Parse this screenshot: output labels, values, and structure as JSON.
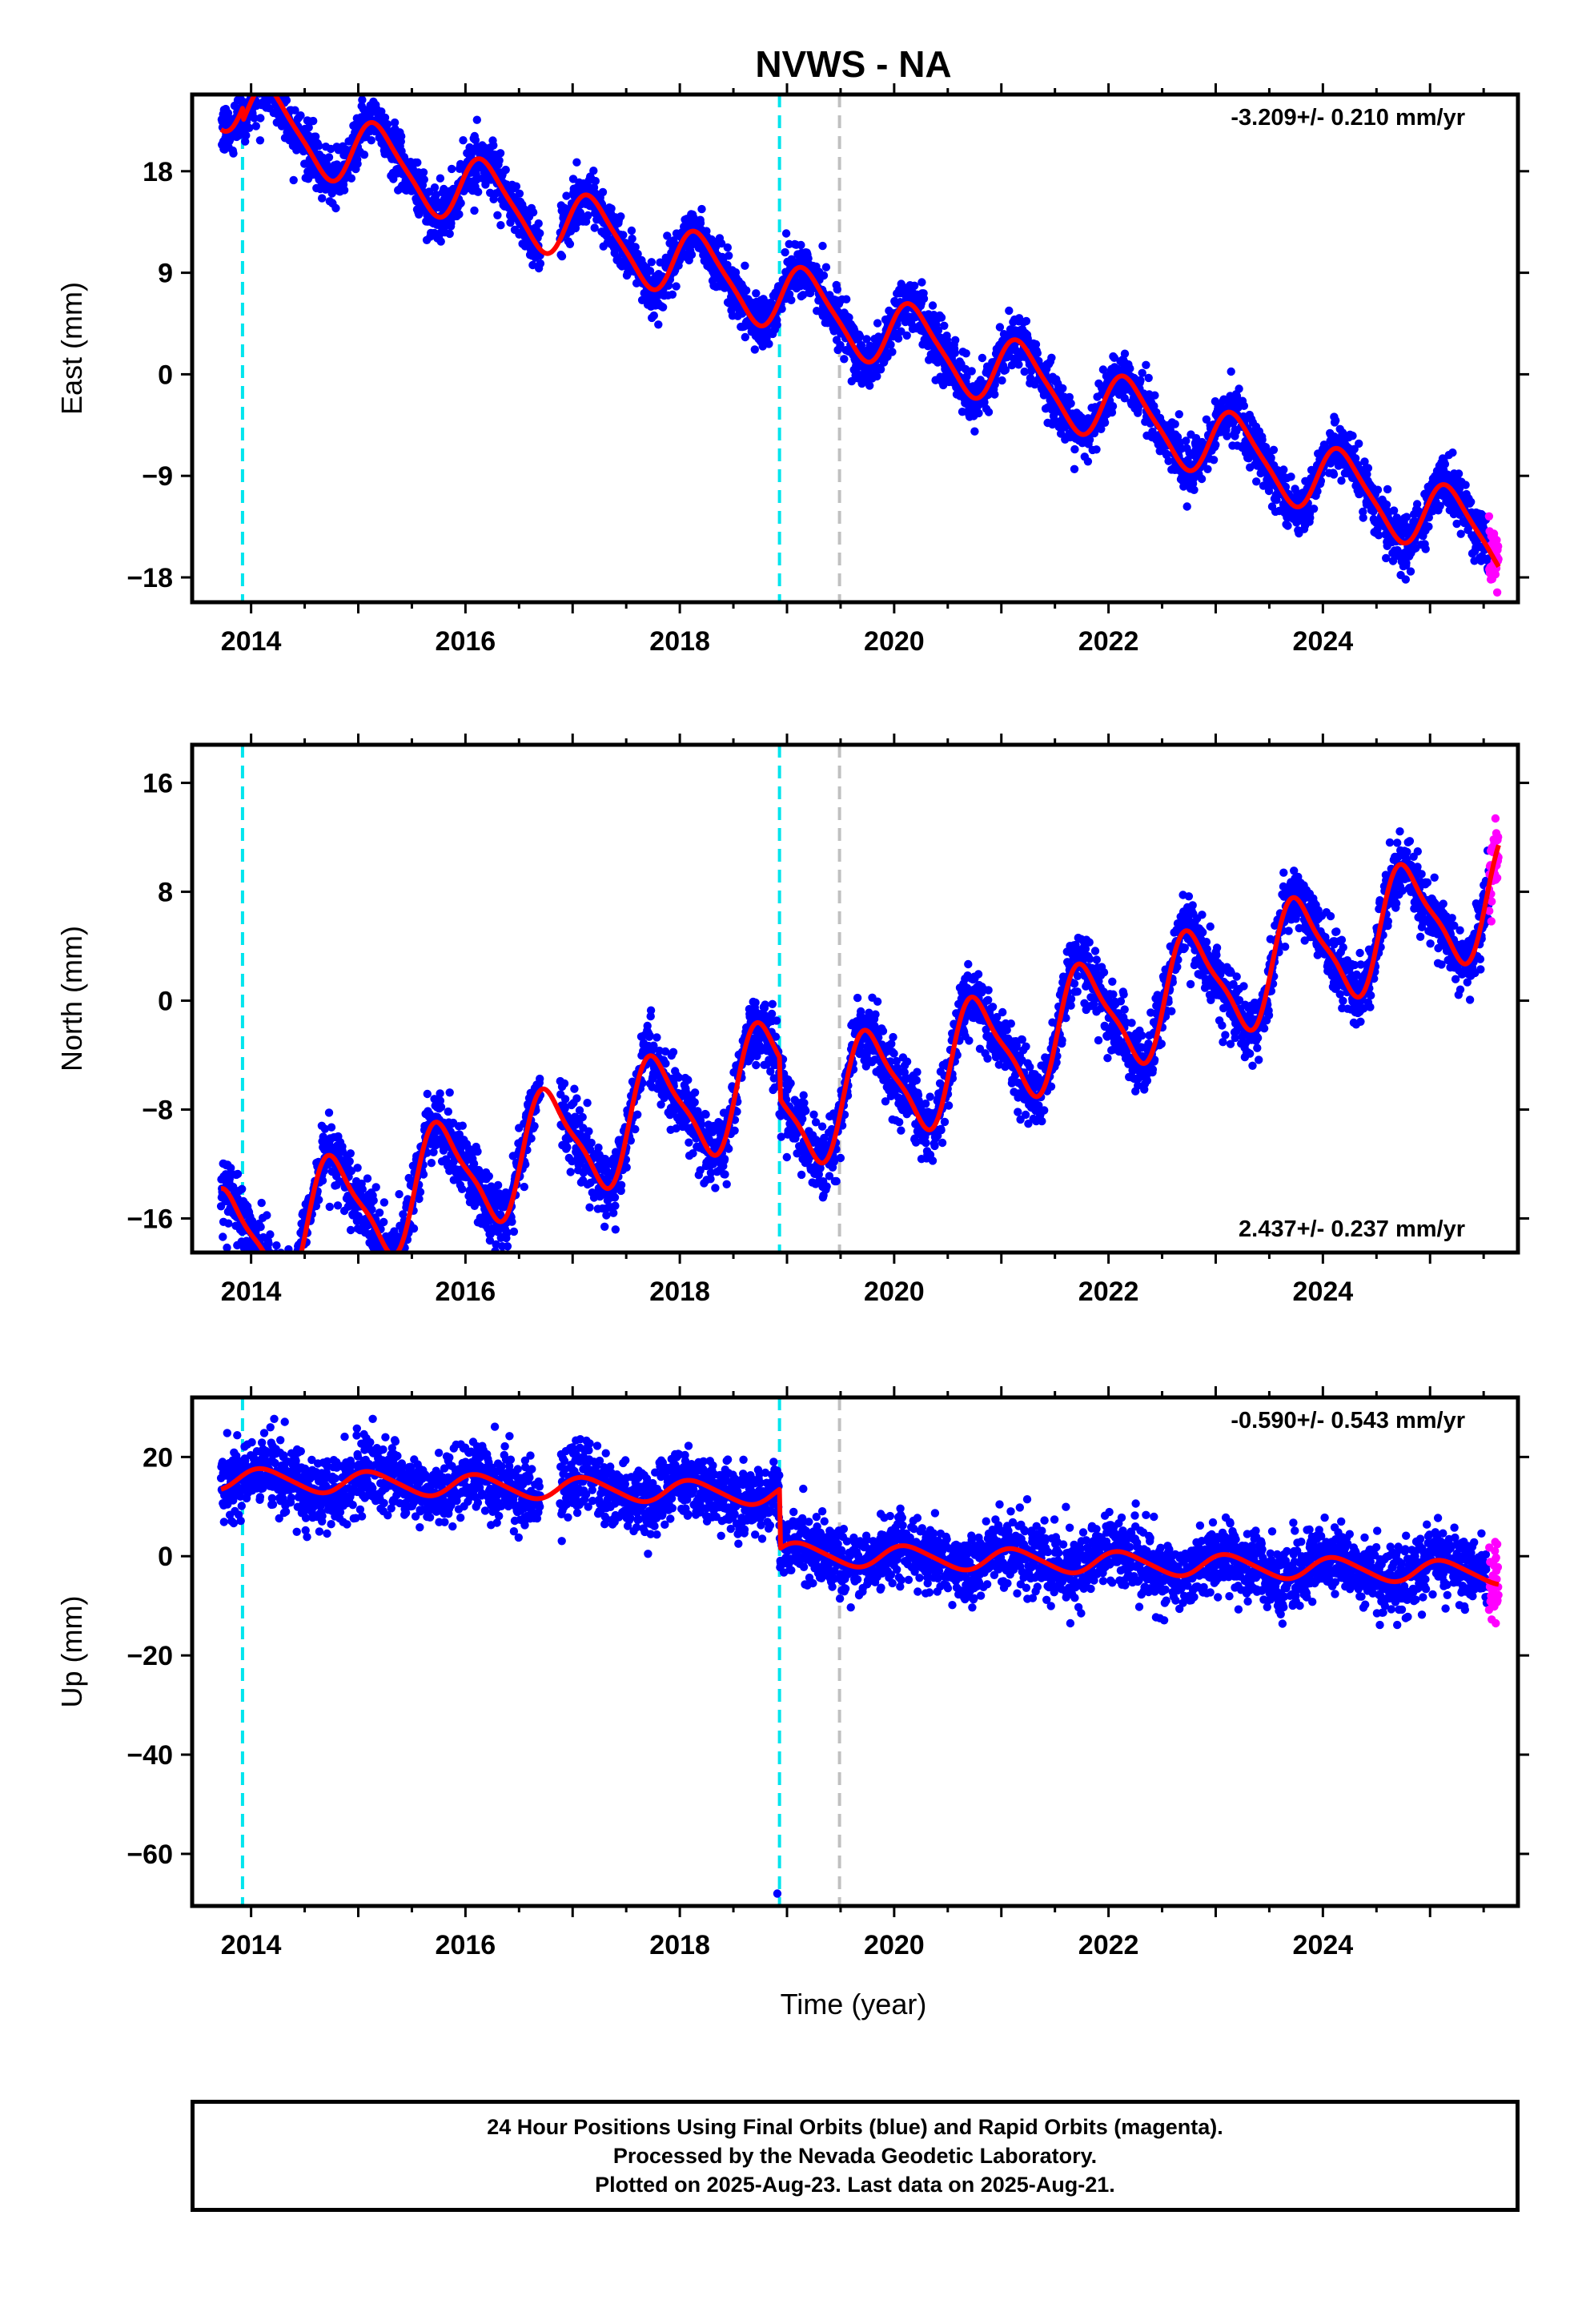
{
  "title": "NVWS - NA",
  "xlabel": "Time (year)",
  "colors": {
    "final_orbits": "#0000ff",
    "rapid_orbits": "#ff00ff",
    "model": "#ff0000",
    "equipment_change": "#00e5ee",
    "other_event": "#c0c0c0"
  },
  "events": {
    "cyan": [
      2013.92,
      2018.93
    ],
    "gray": [
      2019.49
    ]
  },
  "chart_data": [
    {
      "type": "scatter",
      "component": "east",
      "ylabel": "East (mm)",
      "rate_label": "-3.209+/- 0.210 mm/yr",
      "rate_position": "top-right",
      "xlim": [
        2013.45,
        2025.82
      ],
      "ylim": [
        -20.2,
        24.8
      ],
      "yticks": [
        -18,
        -9,
        0,
        9,
        18
      ],
      "xticks": [
        2014,
        2016,
        2018,
        2020,
        2022,
        2024
      ],
      "start_value": 21.7,
      "rate": -3.209,
      "annual_amplitude": 3.0,
      "semiannual_amplitude": 0.6,
      "annual_phase_deg": 20,
      "offsets": [
        {
          "year": 2013.92,
          "value": -1.2
        }
      ],
      "scatter_std": 1.15,
      "gap": [
        2016.7,
        2016.88
      ]
    },
    {
      "type": "scatter",
      "component": "north",
      "ylabel": "North (mm)",
      "rate_label": "2.437+/- 0.237 mm/yr",
      "rate_position": "bottom-right",
      "xlim": [
        2013.45,
        2025.82
      ],
      "ylim": [
        -18.5,
        18.8
      ],
      "yticks": [
        -16,
        -8,
        0,
        8,
        16
      ],
      "xticks": [
        2014,
        2016,
        2018,
        2020,
        2022,
        2024
      ],
      "start_value": -13.8,
      "rate": 2.437,
      "annual_amplitude": 4.0,
      "semiannual_amplitude": 1.0,
      "annual_phase_deg": 170,
      "offsets": [
        {
          "year": 2018.93,
          "value": -3.0
        }
      ],
      "scatter_std": 1.2,
      "gap": [
        2016.7,
        2016.88
      ]
    },
    {
      "type": "scatter",
      "component": "up",
      "ylabel": "Up (mm)",
      "rate_label": "-0.590+/- 0.543 mm/yr",
      "rate_position": "top-right",
      "xlim": [
        2013.45,
        2025.82
      ],
      "ylim": [
        -70.5,
        32
      ],
      "yticks": [
        -60,
        -40,
        -20,
        0,
        20
      ],
      "xticks": [
        2014,
        2016,
        2018,
        2020,
        2022,
        2024
      ],
      "start_value": 13.5,
      "rate": -0.59,
      "annual_amplitude": 2.2,
      "semiannual_amplitude": 0.3,
      "annual_phase_deg": 45,
      "offsets": [
        {
          "year": 2018.93,
          "value": -12.0
        }
      ],
      "scatter_std": 3.4,
      "gap": [
        2016.7,
        2016.88
      ],
      "outliers": [
        {
          "year": 2018.91,
          "value": -68.0
        }
      ]
    }
  ],
  "footer": {
    "line1": "24 Hour Positions Using Final Orbits (blue) and Rapid Orbits (magenta).",
    "line2": "Processed by the Nevada Geodetic Laboratory.",
    "line3": "Plotted on 2025-Aug-23. Last data on 2025-Aug-21."
  }
}
